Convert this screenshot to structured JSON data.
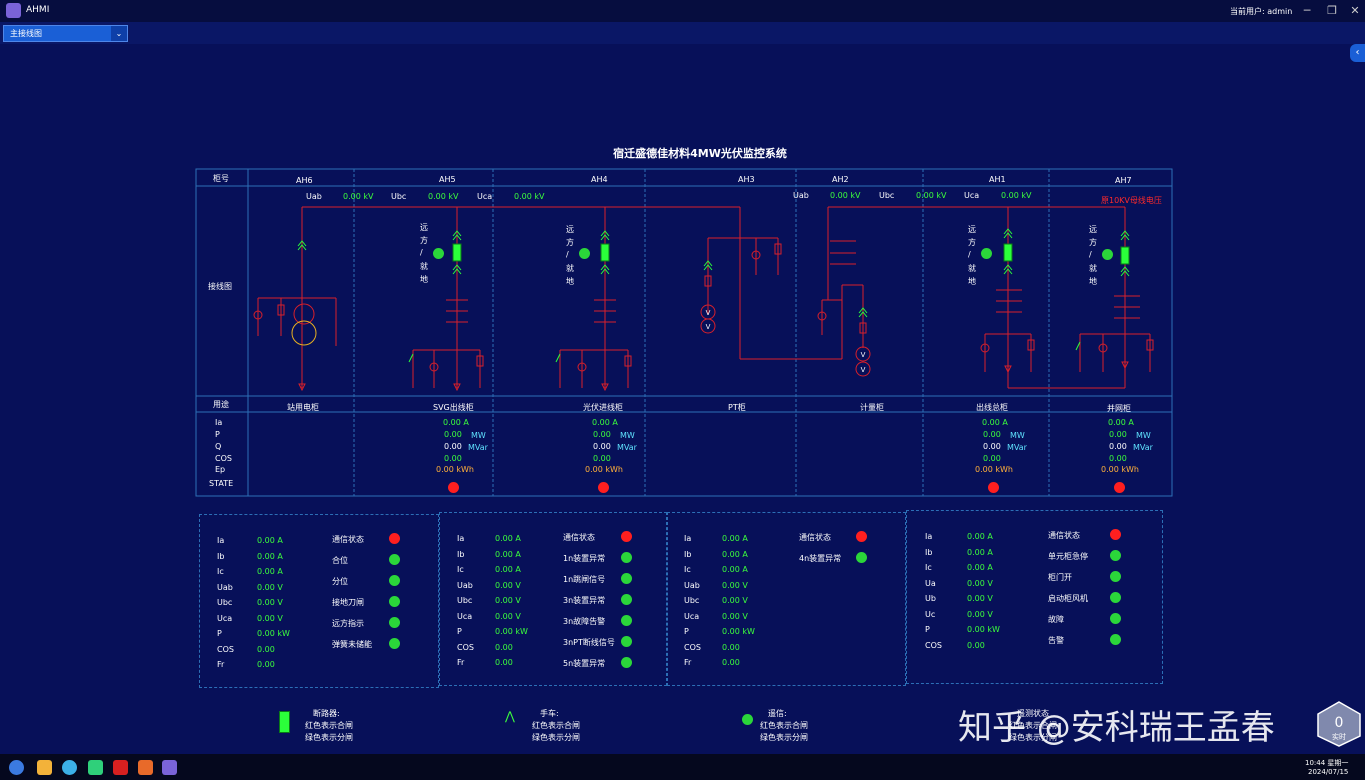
{
  "window": {
    "app_name": "AHMI",
    "user_label": "当前用户:  admin"
  },
  "toolbar": {
    "view_select": "主接线图"
  },
  "title": "宿迁盛德佳材料4MW光伏监控系统",
  "table": {
    "row_headers": {
      "cabinet": "柜号",
      "wiring": "接线图",
      "usage": "用途"
    },
    "cabinets": [
      "AH6",
      "AH5",
      "AH4",
      "AH3",
      "AH2",
      "AH1",
      "AH7"
    ],
    "usages": [
      "站用电柜",
      "SVG出线柜",
      "光伏进线柜",
      "PT柜",
      "计量柜",
      "出线总柜",
      "并网柜"
    ],
    "voltage_left": [
      {
        "label": "Uab",
        "value": "0.00 kV"
      },
      {
        "label": "Ubc",
        "value": "0.00 kV"
      },
      {
        "label": "Uca",
        "value": "0.00 kV"
      }
    ],
    "voltage_right": [
      {
        "label": "Uab",
        "value": "0.00 kV"
      },
      {
        "label": "Ubc",
        "value": "0.00 kV"
      },
      {
        "label": "Uca",
        "value": "0.00 kV"
      }
    ],
    "bus_note": "原10KV母线电压",
    "local_remote": [
      "远",
      "方",
      "/",
      "就",
      "地"
    ],
    "measure_labels": [
      "Ia",
      "P",
      "Q",
      "COS",
      "Ep",
      "STATE"
    ],
    "measures": [
      {
        "ia": "0.00 A",
        "p": "0.00",
        "q": "0.00",
        "cos": "0.00",
        "ep": "0.00 kWh",
        "p_unit": "MW",
        "q_unit": "MVar"
      },
      {
        "ia": "0.00 A",
        "p": "0.00",
        "q": "0.00",
        "cos": "0.00",
        "ep": "0.00 kWh",
        "p_unit": "MW",
        "q_unit": "MVar"
      },
      {
        "ia": "0.00 A",
        "p": "0.00",
        "q": "0.00",
        "cos": "0.00",
        "ep": "0.00 kWh",
        "p_unit": "MW",
        "q_unit": "MVar"
      },
      {
        "ia": "0.00 A",
        "p": "0.00",
        "q": "0.00",
        "cos": "0.00",
        "ep": "0.00 kWh",
        "p_unit": "MW",
        "q_unit": "MVar"
      }
    ],
    "pt_v": "V"
  },
  "panels": [
    {
      "meas": [
        [
          "Ia",
          "0.00 A"
        ],
        [
          "Ib",
          "0.00 A"
        ],
        [
          "Ic",
          "0.00 A"
        ],
        [
          "Uab",
          "0.00 V"
        ],
        [
          "Ubc",
          "0.00 V"
        ],
        [
          "Uca",
          "0.00 V"
        ],
        [
          "P",
          "0.00 kW"
        ],
        [
          "COS",
          "0.00"
        ],
        [
          "Fr",
          "0.00"
        ]
      ],
      "status": [
        [
          "通信状态",
          "red"
        ],
        [
          "合位",
          "green"
        ],
        [
          "分位",
          "green"
        ],
        [
          "接地刀闸",
          "green"
        ],
        [
          "远方指示",
          "green"
        ],
        [
          "弹簧未储能",
          "green"
        ]
      ]
    },
    {
      "meas": [
        [
          "Ia",
          "0.00 A"
        ],
        [
          "Ib",
          "0.00 A"
        ],
        [
          "Ic",
          "0.00 A"
        ],
        [
          "Uab",
          "0.00 V"
        ],
        [
          "Ubc",
          "0.00 V"
        ],
        [
          "Uca",
          "0.00 V"
        ],
        [
          "P",
          "0.00 kW"
        ],
        [
          "COS",
          "0.00"
        ],
        [
          "Fr",
          "0.00"
        ]
      ],
      "status": [
        [
          "通信状态",
          "red"
        ],
        [
          "1n装置异常",
          "green"
        ],
        [
          "1n跳闸信号",
          "green"
        ],
        [
          "3n装置异常",
          "green"
        ],
        [
          "3n故障告警",
          "green"
        ],
        [
          "3nPT断线信号",
          "green"
        ],
        [
          "5n装置异常",
          "green"
        ]
      ]
    },
    {
      "meas": [
        [
          "Ia",
          "0.00 A"
        ],
        [
          "Ib",
          "0.00 A"
        ],
        [
          "Ic",
          "0.00 A"
        ],
        [
          "Uab",
          "0.00 V"
        ],
        [
          "Ubc",
          "0.00 V"
        ],
        [
          "Uca",
          "0.00 V"
        ],
        [
          "P",
          "0.00 kW"
        ],
        [
          "COS",
          "0.00"
        ],
        [
          "Fr",
          "0.00"
        ]
      ],
      "status": [
        [
          "通信状态",
          "red"
        ],
        [
          "4n装置异常",
          "green"
        ]
      ]
    },
    {
      "meas": [
        [
          "Ia",
          "0.00 A"
        ],
        [
          "Ib",
          "0.00 A"
        ],
        [
          "Ic",
          "0.00 A"
        ],
        [
          "Ua",
          "0.00 V"
        ],
        [
          "Ub",
          "0.00 V"
        ],
        [
          "Uc",
          "0.00 V"
        ],
        [
          "P",
          "0.00 kW"
        ],
        [
          "COS",
          "0.00"
        ]
      ],
      "status": [
        [
          "通信状态",
          "red"
        ],
        [
          "单元柜急停",
          "green"
        ],
        [
          "柜门开",
          "green"
        ],
        [
          "启动柜风机",
          "green"
        ],
        [
          "故障",
          "green"
        ],
        [
          "告警",
          "green"
        ]
      ]
    }
  ],
  "legend": [
    {
      "title": "断路器:",
      "l1": "红色表示合闸",
      "l2": "绿色表示分闸"
    },
    {
      "title": "手车:",
      "l1": "红色表示合闸",
      "l2": "绿色表示分闸"
    },
    {
      "title": "遥信:",
      "l1": "红色表示合闸",
      "l2": "绿色表示分闸"
    },
    {
      "title": "遥测状态",
      "l1": "红色表示合闸",
      "l2": "绿色表示分闸"
    }
  ],
  "watermark": "知乎 @安科瑞王孟春",
  "badge": {
    "value": "0",
    "label": "实时"
  },
  "taskbar": {
    "time": "10:44 星期一",
    "date": "2024/07/15"
  },
  "colors": {
    "bg": "#071059",
    "line": "#d8202a",
    "accent": "#3cff3c",
    "grid": "#2c6fb6"
  }
}
